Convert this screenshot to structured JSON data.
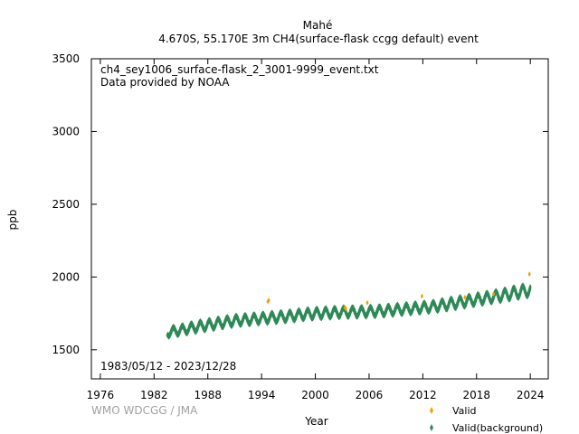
{
  "chart_data": {
    "type": "scatter",
    "title": "Mahé",
    "subtitle": "4.670S, 55.170E 3m    CH4(surface-flask ccgg default) event",
    "filename": "ch4_sey1006_surface-flask_2_3001-9999_event.txt",
    "provider": "Data provided by NOAA",
    "date_range": "1983/05/12 - 2023/12/28",
    "credit": "WMO WDCGG / JMA",
    "xlabel": "Year",
    "ylabel": "ppb",
    "xlim": [
      1975,
      2026
    ],
    "ylim": [
      1300,
      3500
    ],
    "xticks": [
      "1976",
      "1982",
      "1988",
      "1994",
      "2000",
      "2006",
      "2012",
      "2018",
      "2024"
    ],
    "yticks": [
      "1500",
      "2000",
      "2500",
      "3000",
      "3500"
    ],
    "grid": false,
    "legend_position": "bottom-right",
    "colors": {
      "valid": "#f0a000",
      "background": "#2e8b57"
    },
    "series": [
      {
        "name": "Valid",
        "color": "#f0a000",
        "points": [
          [
            1994.7,
            1832
          ],
          [
            1994.8,
            1840
          ],
          [
            2003.3,
            1790
          ],
          [
            2003.4,
            1782
          ],
          [
            2005.8,
            1823
          ],
          [
            2011.9,
            1868
          ],
          [
            2016.7,
            1860
          ],
          [
            2019.9,
            1885
          ],
          [
            2023.9,
            2020
          ]
        ]
      },
      {
        "name": "Valid(background)",
        "color": "#2e8b57",
        "seasonal": [
          [
            1983.5,
            1620,
            60
          ],
          [
            1985,
            1635,
            60
          ],
          [
            1987,
            1660,
            65
          ],
          [
            1989,
            1680,
            65
          ],
          [
            1991,
            1700,
            65
          ],
          [
            1993,
            1710,
            65
          ],
          [
            1995,
            1720,
            65
          ],
          [
            1997,
            1730,
            65
          ],
          [
            1999,
            1745,
            65
          ],
          [
            2001,
            1752,
            65
          ],
          [
            2003,
            1758,
            65
          ],
          [
            2005,
            1760,
            65
          ],
          [
            2007,
            1765,
            65
          ],
          [
            2009,
            1775,
            65
          ],
          [
            2011,
            1785,
            65
          ],
          [
            2013,
            1795,
            65
          ],
          [
            2015,
            1815,
            70
          ],
          [
            2017,
            1835,
            70
          ],
          [
            2019,
            1855,
            70
          ],
          [
            2021,
            1875,
            75
          ],
          [
            2023,
            1900,
            80
          ],
          [
            2024,
            1910,
            80
          ]
        ]
      }
    ]
  }
}
